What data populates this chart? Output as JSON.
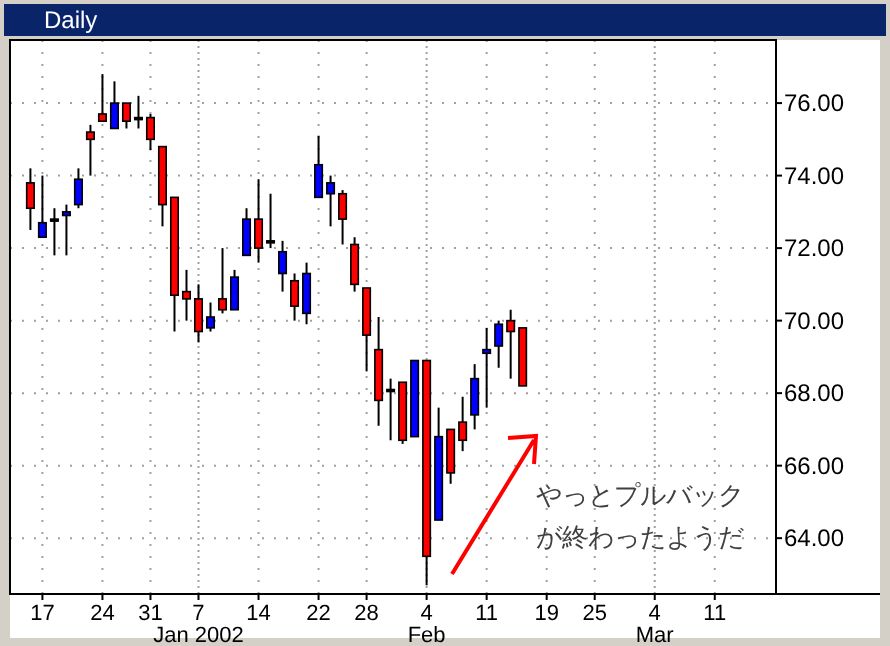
{
  "chart_data": {
    "type": "candlestick",
    "title": "Daily",
    "categories": [
      null,
      "17",
      null,
      null,
      null,
      null,
      "24",
      null,
      null,
      null,
      "31",
      null,
      null,
      null,
      "7\nJan 2002",
      null,
      null,
      null,
      null,
      "14",
      null,
      null,
      null,
      null,
      "22",
      null,
      null,
      null,
      "28",
      null,
      null,
      null,
      null,
      "4\nFeb",
      null,
      null,
      null,
      null,
      "11",
      null,
      null,
      null,
      null,
      "19",
      null,
      null,
      null,
      "25",
      null,
      null,
      null,
      null,
      "4\nMar",
      null,
      null,
      null,
      null,
      "11",
      null,
      null,
      null,
      null,
      null
    ],
    "ohlc": [
      [
        73.8,
        74.2,
        72.5,
        73.1
      ],
      [
        72.3,
        74.0,
        72.3,
        72.7
      ],
      [
        72.8,
        73.1,
        71.8,
        72.8
      ],
      [
        72.9,
        73.2,
        71.8,
        73.0
      ],
      [
        73.2,
        74.2,
        73.1,
        73.9
      ],
      [
        75.2,
        75.4,
        74.0,
        75.0
      ],
      [
        75.7,
        76.8,
        75.5,
        75.5
      ],
      [
        75.3,
        76.6,
        75.3,
        76.0
      ],
      [
        76.0,
        76.0,
        75.3,
        75.5
      ],
      [
        75.6,
        76.2,
        75.3,
        75.6
      ],
      [
        75.6,
        75.7,
        74.7,
        75.0
      ],
      [
        74.8,
        74.8,
        72.6,
        73.2
      ],
      [
        73.4,
        73.4,
        69.7,
        70.7
      ],
      [
        70.8,
        71.4,
        70.0,
        70.6
      ],
      [
        70.6,
        71.0,
        69.4,
        69.7
      ],
      [
        69.8,
        70.5,
        69.7,
        70.1
      ],
      [
        70.6,
        72.0,
        70.2,
        70.3
      ],
      [
        70.3,
        71.4,
        70.3,
        71.2
      ],
      [
        71.8,
        73.1,
        71.8,
        72.8
      ],
      [
        72.8,
        73.9,
        71.6,
        72.0
      ],
      [
        72.2,
        73.5,
        72.0,
        72.2
      ],
      [
        71.3,
        72.2,
        70.8,
        71.9
      ],
      [
        71.1,
        71.3,
        70.0,
        70.4
      ],
      [
        70.2,
        71.6,
        69.9,
        71.3
      ],
      [
        73.4,
        75.1,
        73.4,
        74.3
      ],
      [
        73.5,
        74.0,
        72.6,
        73.8
      ],
      [
        73.5,
        73.6,
        72.1,
        72.8
      ],
      [
        72.1,
        72.3,
        70.8,
        71.0
      ],
      [
        70.9,
        70.9,
        68.6,
        69.6
      ],
      [
        69.2,
        70.1,
        67.1,
        67.8
      ],
      [
        68.1,
        68.4,
        66.7,
        68.1
      ],
      [
        68.3,
        68.3,
        66.6,
        66.7
      ],
      [
        66.8,
        68.9,
        66.8,
        68.9
      ],
      [
        68.9,
        68.9,
        62.7,
        63.5
      ],
      [
        64.5,
        67.6,
        64.5,
        66.8
      ],
      [
        67.0,
        67.0,
        65.5,
        65.8
      ],
      [
        67.2,
        67.9,
        66.4,
        66.7
      ],
      [
        67.4,
        68.8,
        67.0,
        68.4
      ],
      [
        69.1,
        69.8,
        67.6,
        69.2
      ],
      [
        69.3,
        70.0,
        68.7,
        69.9
      ],
      [
        70.0,
        70.3,
        68.4,
        69.7
      ],
      [
        69.8,
        69.8,
        68.2,
        68.2
      ],
      null,
      null,
      null,
      null,
      null,
      null,
      null,
      null,
      null,
      null,
      null,
      null,
      null,
      null,
      null,
      null,
      null,
      null,
      null,
      null,
      null
    ],
    "colors": [
      "#ff0000",
      "#0000ff",
      "#000000",
      "#0000ff",
      "#0000ff",
      "#ff0000",
      "#ff0000",
      "#0000ff",
      "#ff0000",
      "#000000",
      "#ff0000",
      "#ff0000",
      "#ff0000",
      "#ff0000",
      "#ff0000",
      "#0000ff",
      "#ff0000",
      "#0000ff",
      "#0000ff",
      "#ff0000",
      "#000000",
      "#0000ff",
      "#ff0000",
      "#0000ff",
      "#0000ff",
      "#0000ff",
      "#ff0000",
      "#ff0000",
      "#ff0000",
      "#ff0000",
      "#000000",
      "#ff0000",
      "#0000ff",
      "#ff0000",
      "#0000ff",
      "#ff0000",
      "#ff0000",
      "#0000ff",
      "#0000ff",
      "#0000ff",
      "#ff0000",
      "#ff0000",
      null,
      null,
      null,
      null,
      null,
      null,
      null,
      null,
      null,
      null,
      null,
      null,
      null,
      null,
      null,
      null,
      null,
      null,
      null,
      null,
      null
    ],
    "ylim": [
      62.46,
      77.74
    ],
    "yticks": [
      {
        "value": 64,
        "label": "64.00"
      },
      {
        "value": 66,
        "label": "66.00"
      },
      {
        "value": 68,
        "label": "68.00"
      },
      {
        "value": 70,
        "label": "70.00"
      },
      {
        "value": 72,
        "label": "72.00"
      },
      {
        "value": 74,
        "label": "74.00"
      },
      {
        "value": 76,
        "label": "76.00"
      }
    ],
    "grid": true,
    "annotations": [
      "やっとプルバックが終わったようだ"
    ]
  }
}
